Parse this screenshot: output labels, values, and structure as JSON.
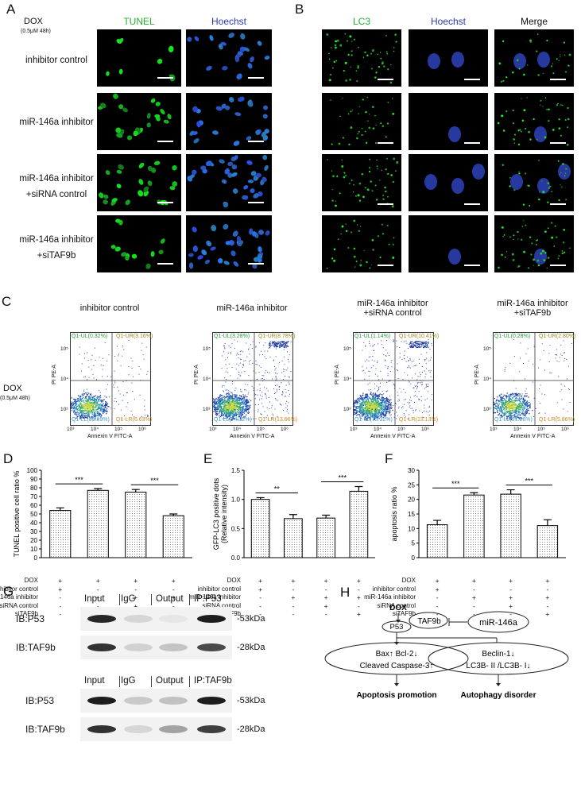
{
  "panels": {
    "A": "A",
    "B": "B",
    "C": "C",
    "D": "D",
    "E": "E",
    "F": "F",
    "G": "G",
    "H": "H"
  },
  "treatment": {
    "label": "DOX",
    "dose": "(0.5μM  48h)"
  },
  "panelA": {
    "col_headers": [
      "TUNEL",
      "Hoechst"
    ],
    "rows": [
      {
        "line1": "inhibitor control",
        "line2": ""
      },
      {
        "line1": "miR-146a inhibitor",
        "line2": ""
      },
      {
        "line1": "miR-146a  inhibitor",
        "line2": "+siRNA control"
      },
      {
        "line1": "miR-146a  inhibitor",
        "line2": "+siTAF9b"
      }
    ]
  },
  "panelB": {
    "col_headers": [
      "LC3",
      "Hoechst",
      "Merge"
    ]
  },
  "panelC": {
    "titles": [
      {
        "line1": "inhibitor control",
        "line2": ""
      },
      {
        "line1": "miR-146a inhibitor",
        "line2": ""
      },
      {
        "line1": "miR-146a  inhibitor",
        "line2": "+siRNA control"
      },
      {
        "line1": "miR-146a  inhibitor",
        "line2": "+siTAF9b"
      }
    ],
    "xlabel": "Annexin V FITC-A",
    "ylabel": "PI PE-A",
    "ticks": [
      "10³",
      "10⁴",
      "10⁵",
      "10⁶"
    ],
    "yticks": [
      "10³",
      "10⁴",
      "10⁵"
    ],
    "quadrants": [
      {
        "ul": "Q1-UL(0.32%)",
        "ur": "Q1-UR(3.16%)",
        "ll": "Q1-LL(89.89%)",
        "lr": "Q1-LR(6.63%)"
      },
      {
        "ul": "Q1-UL(3.28%)",
        "ur": "Q1-UR(8.78%)",
        "ll": "Q1-LL(74.32%)",
        "lr": "Q1-LR(13.66%)"
      },
      {
        "ul": "Q1-UL(1.14%)",
        "ur": "Q1-UR(10.41%)",
        "ll": "Q1-LL(75.32%)",
        "lr": "Q1-LR(13.13%)"
      },
      {
        "ul": "Q1-UL(0.28%)",
        "ur": "Q1-UR(2.80%)",
        "ll": "Q1-LL(91.06%)",
        "lr": "Q1-LR(5.86%)"
      }
    ],
    "colors": {
      "ul": "#2a9a3a",
      "ur": "#9a8a20",
      "ll": "#3a9ad0",
      "lr": "#d08a20"
    }
  },
  "chart_data": [
    {
      "type": "bar",
      "panel": "D",
      "ylabel": "TUNEL positive cell ratio %",
      "ylim": [
        0,
        100
      ],
      "yticks": [
        0,
        10,
        20,
        30,
        40,
        50,
        60,
        70,
        80,
        90,
        100
      ],
      "values": [
        54,
        77,
        75,
        48
      ],
      "errors": [
        3,
        2,
        3,
        2
      ],
      "significance": [
        {
          "from": 0,
          "to": 1,
          "label": "***"
        },
        {
          "from": 2,
          "to": 3,
          "label": "***"
        }
      ]
    },
    {
      "type": "bar",
      "panel": "E",
      "ylabel": "GFP-LC3 positive dots",
      "ylabel2": "(Relative intensity)",
      "ylim": [
        0,
        1.5
      ],
      "yticks": [
        0.0,
        0.5,
        1.0,
        1.5
      ],
      "ytick_labels": [
        "0.0",
        "0.5",
        "1.0",
        "1.5"
      ],
      "values": [
        1.0,
        0.67,
        0.68,
        1.14
      ],
      "errors": [
        0.03,
        0.07,
        0.05,
        0.08
      ],
      "significance": [
        {
          "from": 0,
          "to": 1,
          "label": "**"
        },
        {
          "from": 2,
          "to": 3,
          "label": "***"
        }
      ]
    },
    {
      "type": "bar",
      "panel": "F",
      "ylabel": "apoptosis ratio %",
      "ylim": [
        0,
        30
      ],
      "yticks": [
        0,
        5,
        10,
        15,
        20,
        25,
        30
      ],
      "values": [
        11.3,
        21.5,
        21.8,
        11.0
      ],
      "errors": [
        1.5,
        0.8,
        1.5,
        2.0
      ],
      "significance": [
        {
          "from": 0,
          "to": 1,
          "label": "***"
        },
        {
          "from": 2,
          "to": 3,
          "label": "***"
        }
      ]
    }
  ],
  "treatment_table": {
    "rows": [
      {
        "label": "DOX",
        "marks": [
          "+",
          "+",
          "+",
          "+"
        ]
      },
      {
        "label": "inhibitor control",
        "marks": [
          "+",
          "-",
          "-",
          "-"
        ]
      },
      {
        "label": "miR-146a inhibitor",
        "marks": [
          "-",
          "+",
          "+",
          "+"
        ]
      },
      {
        "label": "siRNA control",
        "marks": [
          "-",
          "-",
          "+",
          "-"
        ]
      },
      {
        "label": "siTAF9b",
        "marks": [
          "-",
          "-",
          "-",
          "+"
        ]
      }
    ]
  },
  "panelG": {
    "blot1": {
      "lanes": [
        "Input",
        "IgG",
        "Output",
        "IP:P53"
      ],
      "rows": [
        {
          "ib": "IB:P53",
          "kda": "-53kDa"
        },
        {
          "ib": "IB:TAF9b",
          "kda": "-28kDa"
        }
      ]
    },
    "blot2": {
      "lanes": [
        "Input",
        "IgG",
        "Output",
        "IP:TAF9b"
      ],
      "rows": [
        {
          "ib": "IB:P53",
          "kda": "-53kDa"
        },
        {
          "ib": "IB:TAF9b",
          "kda": "-28kDa"
        }
      ]
    }
  },
  "panelH": {
    "dox": "DOX",
    "p53": "P53",
    "taf9b": "TAF9b",
    "mir": "miR-146a",
    "left_line1": "Bax↑  Bcl-2↓",
    "left_line2": "Cleaved Caspase-3↑",
    "right_line1": "Beclin-1↓",
    "right_line2": "LC3B- II /LC3B- I↓",
    "outcome_left": "Apoptosis promotion",
    "outcome_right": "Autophagy disorder"
  }
}
